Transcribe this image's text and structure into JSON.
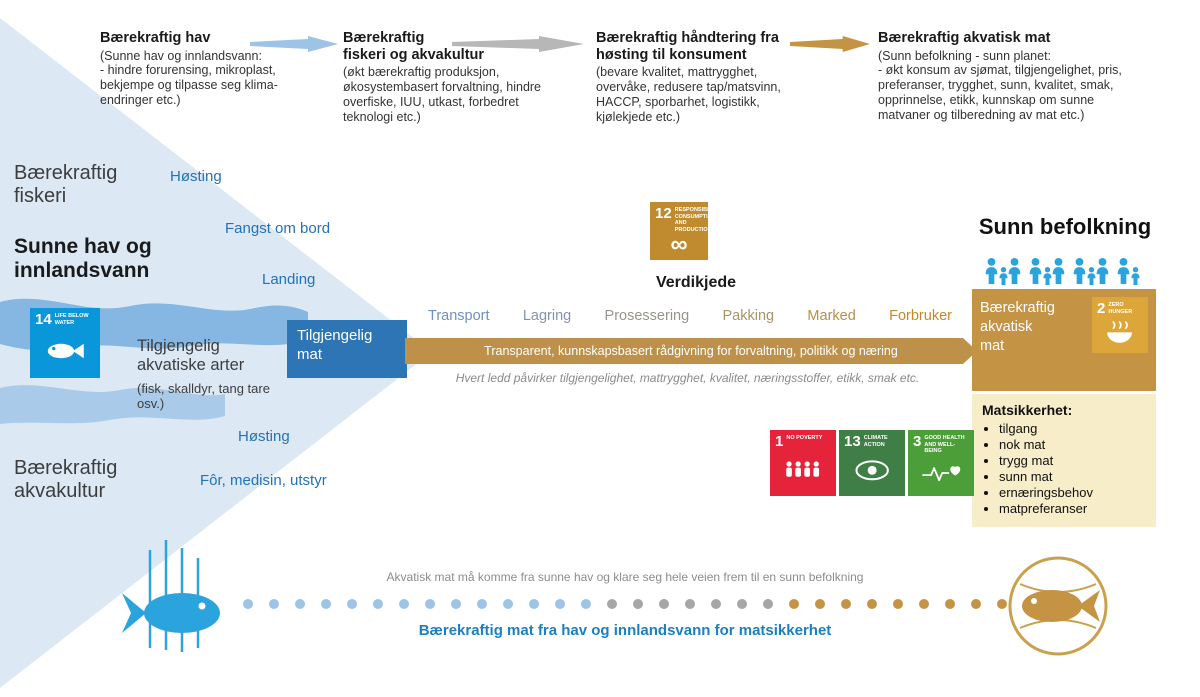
{
  "flow": {
    "arrow_colors": [
      "#9dc3e6",
      "#b7b7b7",
      "#c49344"
    ],
    "columns": [
      {
        "title": "Bærekraftig hav",
        "body": "(Sunne hav og innlandsvann:\n- hindre forurensing, mikroplast,\nbekjempe og tilpasse seg klima-\nendringer etc.)"
      },
      {
        "title": "Bærekraftig\nfiskeri og akvakultur",
        "body": "(økt bærekraftig produksjon,\nøkosystembasert forvaltning, hindre\noverfiske, IUU, utkast, forbedret\nteknologi etc.)"
      },
      {
        "title": "Bærekraftig håndtering fra\nhøsting til konsument",
        "body": "(bevare kvalitet, mattrygghet,\novervåke, redusere tap/matsvinn,\nHACCP, sporbarhet, logistikk,\nkjølekjede etc.)"
      },
      {
        "title": "Bærekraftig akvatisk mat",
        "body": "(Sunn befolkning - sunn planet:\n- økt konsum av sjømat, tilgjengelighet, pris,\npreferanser, trygghet, sunn, kvalitet, smak,\nopprinnelse, etikk, kunnskap om sunne\nmatvaner og tilberedning av mat etc.)"
      }
    ]
  },
  "left": {
    "fiskeri": "Bærekraftig\nfiskeri",
    "sunne_hav": "Sunne hav og\ninnlandsvann",
    "akvakultur": "Bærekraftig\nakvakultur",
    "species_title": "Tilgjengelig\nakvatiske arter",
    "species_sub": "(fisk, skalldyr, tang tare\nosv.)",
    "stages_fiskeri": [
      "Høsting",
      "Fangst om bord",
      "Landing"
    ],
    "stages_akvakultur": [
      "Høsting",
      "Fôr, medisin, utstyr"
    ]
  },
  "chain": {
    "title": "Verdikjede",
    "available_food": "Tilgjengelig\nmat",
    "available_food_bg": "#2e75b6",
    "bar_text": "Transparent, kunnskapsbasert rådgivning for forvaltning, politikk og næring",
    "bar_bg": "#bd914a",
    "note": "Hvert ledd påvirker tilgjengelighet, mattrygghet, kvalitet, næringsstoffer, etikk, smak etc.",
    "steps": [
      {
        "label": "Transport",
        "color": "#6f8fbe"
      },
      {
        "label": "Lagring",
        "color": "#8494ad"
      },
      {
        "label": "Prosessering",
        "color": "#98948c"
      },
      {
        "label": "Pakking",
        "color": "#ab9366"
      },
      {
        "label": "Marked",
        "color": "#b98f49"
      },
      {
        "label": "Forbruker",
        "color": "#c28a2a"
      }
    ]
  },
  "right": {
    "heading": "Sunn befolkning",
    "gold_label": "Bærekraftig\nakvatisk\nmat",
    "gold_bg": "#c49344",
    "matsikkerhet_title": "Matsikkerhet:",
    "matsikkerhet_bg": "#f7edc8",
    "matsikkerhet_items": [
      "tilgang",
      "nok mat",
      "trygg mat",
      "sunn mat",
      "ernæringsbehov",
      "matpreferanser"
    ]
  },
  "sdg": {
    "s14": {
      "number": "14",
      "title": "Life below water",
      "bg": "#0a97d9"
    },
    "s12": {
      "number": "12",
      "title": "Responsible consumption and production",
      "bg": "#bf8b2e",
      "glyph": "∞"
    },
    "s2": {
      "number": "2",
      "title": "Zero hunger",
      "bg": "#dda63a"
    },
    "s1": {
      "number": "1",
      "title": "No poverty",
      "bg": "#e5243b"
    },
    "s13": {
      "number": "13",
      "title": "Climate action",
      "bg": "#3f7e44"
    },
    "s3": {
      "number": "3",
      "title": "Good health and well-being",
      "bg": "#4c9f38"
    }
  },
  "bottom": {
    "note": "Akvatisk mat må komme fra sunne hav og klare seg hele veien frem til en sunn befolkning",
    "slogan": "Bærekraftig mat fra hav og innlandsvann for matsikkerhet",
    "slogan_color": "#1b7fc4",
    "dot_segments": [
      {
        "color": "#9dc3e6",
        "count": 14
      },
      {
        "color": "#a6a6a6",
        "count": 7
      },
      {
        "color": "#c49344",
        "count": 9
      }
    ]
  }
}
